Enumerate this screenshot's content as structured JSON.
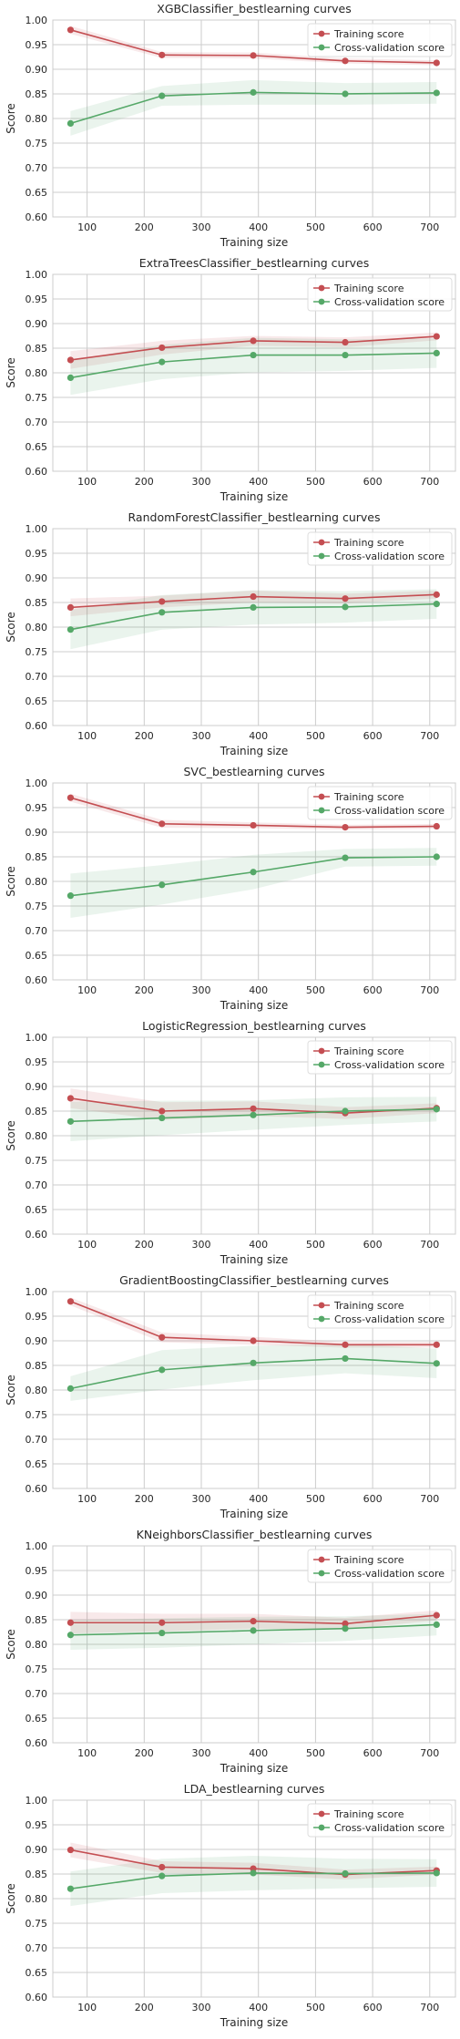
{
  "colors": {
    "train": "#c44e52",
    "cv": "#55a868",
    "grid": "#cccccc",
    "text": "#262626"
  },
  "chart_data": [
    {
      "type": "line",
      "title": "XGBClassifier_bestlearning curves",
      "xlabel": "Training size",
      "ylabel": "Score",
      "xticks": [
        100,
        200,
        300,
        400,
        500,
        600,
        700
      ],
      "yticks": [
        "0.60",
        "0.65",
        "0.70",
        "0.75",
        "0.80",
        "0.85",
        "0.90",
        "0.95",
        "1.00"
      ],
      "xlim": [
        40,
        745
      ],
      "ylim": [
        0.6,
        1.0
      ],
      "grid": true,
      "legend": "top-right",
      "x": [
        71,
        231,
        391,
        552,
        712
      ],
      "series": [
        {
          "name": "Training score",
          "values": [
            0.98,
            0.929,
            0.928,
            0.917,
            0.913
          ],
          "band": [
            0.008,
            0.006,
            0.006,
            0.005,
            0.005
          ]
        },
        {
          "name": "Cross-validation score",
          "values": [
            0.79,
            0.846,
            0.853,
            0.85,
            0.852
          ],
          "band": [
            0.025,
            0.02,
            0.025,
            0.022,
            0.022
          ]
        }
      ]
    },
    {
      "type": "line",
      "title": "ExtraTreesClassifier_bestlearning curves",
      "xlabel": "Training size",
      "ylabel": "Score",
      "xticks": [
        100,
        200,
        300,
        400,
        500,
        600,
        700
      ],
      "yticks": [
        "0.60",
        "0.65",
        "0.70",
        "0.75",
        "0.80",
        "0.85",
        "0.90",
        "0.95",
        "1.00"
      ],
      "xlim": [
        40,
        745
      ],
      "ylim": [
        0.6,
        1.0
      ],
      "grid": true,
      "legend": "top-right",
      "x": [
        71,
        231,
        391,
        552,
        712
      ],
      "series": [
        {
          "name": "Training score",
          "values": [
            0.826,
            0.851,
            0.865,
            0.862,
            0.874
          ],
          "band": [
            0.018,
            0.014,
            0.01,
            0.01,
            0.008
          ]
        },
        {
          "name": "Cross-validation score",
          "values": [
            0.79,
            0.822,
            0.836,
            0.836,
            0.84
          ],
          "band": [
            0.035,
            0.035,
            0.035,
            0.032,
            0.03
          ]
        }
      ]
    },
    {
      "type": "line",
      "title": "RandomForestClassifier_bestlearning curves",
      "xlabel": "Training size",
      "ylabel": "Score",
      "xticks": [
        100,
        200,
        300,
        400,
        500,
        600,
        700
      ],
      "yticks": [
        "0.60",
        "0.65",
        "0.70",
        "0.75",
        "0.80",
        "0.85",
        "0.90",
        "0.95",
        "1.00"
      ],
      "xlim": [
        40,
        745
      ],
      "ylim": [
        0.6,
        1.0
      ],
      "grid": true,
      "legend": "top-right",
      "x": [
        71,
        231,
        391,
        552,
        712
      ],
      "series": [
        {
          "name": "Training score",
          "values": [
            0.84,
            0.852,
            0.862,
            0.858,
            0.866
          ],
          "band": [
            0.018,
            0.012,
            0.012,
            0.01,
            0.008
          ]
        },
        {
          "name": "Cross-validation score",
          "values": [
            0.795,
            0.83,
            0.84,
            0.841,
            0.847
          ],
          "band": [
            0.04,
            0.035,
            0.035,
            0.032,
            0.03
          ]
        }
      ]
    },
    {
      "type": "line",
      "title": "SVC_bestlearning curves",
      "xlabel": "Training size",
      "ylabel": "Score",
      "xticks": [
        100,
        200,
        300,
        400,
        500,
        600,
        700
      ],
      "yticks": [
        "0.60",
        "0.65",
        "0.70",
        "0.75",
        "0.80",
        "0.85",
        "0.90",
        "0.95",
        "1.00"
      ],
      "xlim": [
        40,
        745
      ],
      "ylim": [
        0.6,
        1.0
      ],
      "grid": true,
      "legend": "top-right",
      "x": [
        71,
        231,
        391,
        552,
        712
      ],
      "series": [
        {
          "name": "Training score",
          "values": [
            0.97,
            0.917,
            0.914,
            0.91,
            0.912
          ],
          "band": [
            0.008,
            0.008,
            0.006,
            0.005,
            0.005
          ]
        },
        {
          "name": "Cross-validation score",
          "values": [
            0.771,
            0.793,
            0.819,
            0.848,
            0.85
          ],
          "band": [
            0.045,
            0.04,
            0.035,
            0.018,
            0.018
          ]
        }
      ]
    },
    {
      "type": "line",
      "title": "LogisticRegression_bestlearning curves",
      "xlabel": "Training size",
      "ylabel": "Score",
      "xticks": [
        100,
        200,
        300,
        400,
        500,
        600,
        700
      ],
      "yticks": [
        "0.60",
        "0.65",
        "0.70",
        "0.75",
        "0.80",
        "0.85",
        "0.90",
        "0.95",
        "1.00"
      ],
      "xlim": [
        40,
        745
      ],
      "ylim": [
        0.6,
        1.0
      ],
      "grid": true,
      "legend": "top-right",
      "x": [
        71,
        231,
        391,
        552,
        712
      ],
      "series": [
        {
          "name": "Training score",
          "values": [
            0.876,
            0.85,
            0.855,
            0.846,
            0.856
          ],
          "band": [
            0.02,
            0.018,
            0.015,
            0.012,
            0.01
          ]
        },
        {
          "name": "Cross-validation score",
          "values": [
            0.829,
            0.836,
            0.842,
            0.85,
            0.854
          ],
          "band": [
            0.04,
            0.035,
            0.03,
            0.028,
            0.025
          ]
        }
      ]
    },
    {
      "type": "line",
      "title": "GradientBoostingClassifier_bestlearning curves",
      "xlabel": "Training size",
      "ylabel": "Score",
      "xticks": [
        100,
        200,
        300,
        400,
        500,
        600,
        700
      ],
      "yticks": [
        "0.60",
        "0.65",
        "0.70",
        "0.75",
        "0.80",
        "0.85",
        "0.90",
        "0.95",
        "1.00"
      ],
      "xlim": [
        40,
        745
      ],
      "ylim": [
        0.6,
        1.0
      ],
      "grid": true,
      "legend": "top-right",
      "x": [
        71,
        231,
        391,
        552,
        712
      ],
      "series": [
        {
          "name": "Training score",
          "values": [
            0.98,
            0.907,
            0.9,
            0.892,
            0.892
          ],
          "band": [
            0.008,
            0.01,
            0.008,
            0.006,
            0.006
          ]
        },
        {
          "name": "Cross-validation score",
          "values": [
            0.803,
            0.841,
            0.855,
            0.864,
            0.854
          ],
          "band": [
            0.025,
            0.04,
            0.035,
            0.03,
            0.03
          ]
        }
      ]
    },
    {
      "type": "line",
      "title": "KNeighborsClassifier_bestlearning curves",
      "xlabel": "Training size",
      "ylabel": "Score",
      "xticks": [
        100,
        200,
        300,
        400,
        500,
        600,
        700
      ],
      "yticks": [
        "0.60",
        "0.65",
        "0.70",
        "0.75",
        "0.80",
        "0.85",
        "0.90",
        "0.95",
        "1.00"
      ],
      "xlim": [
        40,
        745
      ],
      "ylim": [
        0.6,
        1.0
      ],
      "grid": true,
      "legend": "top-right",
      "x": [
        71,
        231,
        391,
        552,
        712
      ],
      "series": [
        {
          "name": "Training score",
          "values": [
            0.844,
            0.844,
            0.847,
            0.842,
            0.859
          ],
          "band": [
            0.022,
            0.018,
            0.015,
            0.012,
            0.01
          ]
        },
        {
          "name": "Cross-validation score",
          "values": [
            0.819,
            0.823,
            0.828,
            0.832,
            0.84
          ],
          "band": [
            0.03,
            0.03,
            0.028,
            0.025,
            0.022
          ]
        }
      ]
    },
    {
      "type": "line",
      "title": "LDA_bestlearning curves",
      "xlabel": "Training size",
      "ylabel": "Score",
      "xticks": [
        100,
        200,
        300,
        400,
        500,
        600,
        700
      ],
      "yticks": [
        "0.60",
        "0.65",
        "0.70",
        "0.75",
        "0.80",
        "0.85",
        "0.90",
        "0.95",
        "1.00"
      ],
      "xlim": [
        40,
        745
      ],
      "ylim": [
        0.6,
        1.0
      ],
      "grid": true,
      "legend": "top-right",
      "x": [
        71,
        231,
        391,
        552,
        712
      ],
      "series": [
        {
          "name": "Training score",
          "values": [
            0.899,
            0.864,
            0.861,
            0.849,
            0.857
          ],
          "band": [
            0.015,
            0.012,
            0.012,
            0.01,
            0.008
          ]
        },
        {
          "name": "Cross-validation score",
          "values": [
            0.82,
            0.846,
            0.852,
            0.851,
            0.852
          ],
          "band": [
            0.035,
            0.035,
            0.035,
            0.03,
            0.028
          ]
        }
      ]
    }
  ]
}
